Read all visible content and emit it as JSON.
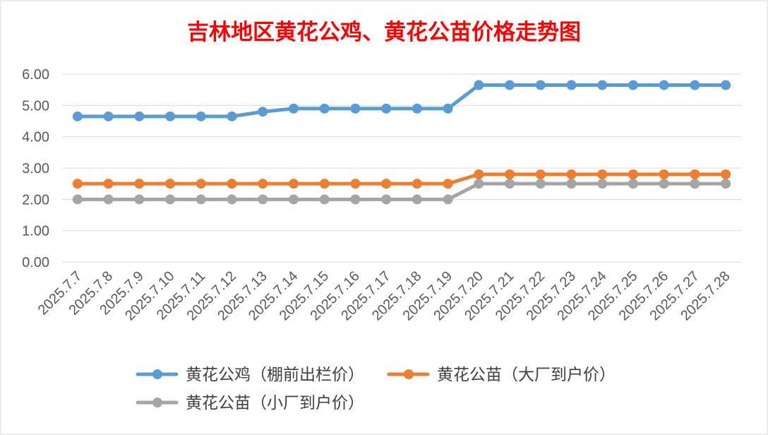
{
  "chart_data": {
    "type": "line",
    "title": "吉林地区黄花公鸡、黄花公苗价格走势图",
    "categories": [
      "2025.7.7",
      "2025.7.8",
      "2025.7.9",
      "2025.7.10",
      "2025.7.11",
      "2025.7.12",
      "2025.7.13",
      "2025.7.14",
      "2025.7.15",
      "2025.7.16",
      "2025.7.17",
      "2025.7.18",
      "2025.7.19",
      "2025.7.20",
      "2025.7.21",
      "2025.7.22",
      "2025.7.23",
      "2025.7.24",
      "2025.7.25",
      "2025.7.26",
      "2025.7.27",
      "2025.7.28"
    ],
    "series": [
      {
        "name": "黄花公鸡（棚前出栏价）",
        "color": "#5B9BD5",
        "values": [
          4.65,
          4.65,
          4.65,
          4.65,
          4.65,
          4.65,
          4.8,
          4.9,
          4.9,
          4.9,
          4.9,
          4.9,
          4.9,
          5.65,
          5.65,
          5.65,
          5.65,
          5.65,
          5.65,
          5.65,
          5.65,
          5.65
        ]
      },
      {
        "name": "黄花公苗（大厂到户价）",
        "color": "#ED7D31",
        "values": [
          2.5,
          2.5,
          2.5,
          2.5,
          2.5,
          2.5,
          2.5,
          2.5,
          2.5,
          2.5,
          2.5,
          2.5,
          2.5,
          2.8,
          2.8,
          2.8,
          2.8,
          2.8,
          2.8,
          2.8,
          2.8,
          2.8
        ]
      },
      {
        "name": "黄花公苗（小厂到户价）",
        "color": "#A5A5A5",
        "values": [
          2.0,
          2.0,
          2.0,
          2.0,
          2.0,
          2.0,
          2.0,
          2.0,
          2.0,
          2.0,
          2.0,
          2.0,
          2.0,
          2.5,
          2.5,
          2.5,
          2.5,
          2.5,
          2.5,
          2.5,
          2.5,
          2.5
        ]
      }
    ],
    "ylim": [
      0,
      6
    ],
    "y_tick_labels": [
      "0.00",
      "1.00",
      "2.00",
      "3.00",
      "4.00",
      "5.00",
      "6.00"
    ],
    "grid": true,
    "legend_position": "bottom"
  }
}
